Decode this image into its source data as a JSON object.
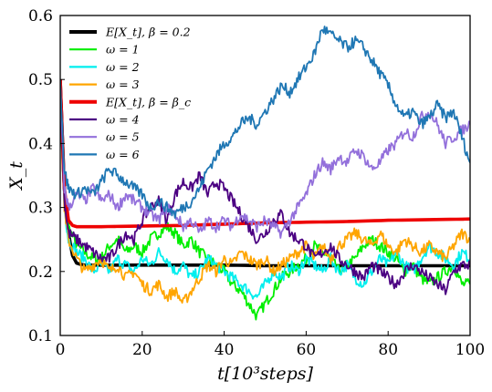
{
  "chart_data": {
    "type": "line",
    "xlabel": "t[10³steps]",
    "ylabel": "X_t",
    "xlim": [
      0,
      100
    ],
    "ylim": [
      0.1,
      0.6
    ],
    "x_ticks": [
      "0",
      "20",
      "40",
      "60",
      "80",
      "100"
    ],
    "y_ticks": [
      "0.1",
      "0.2",
      "0.3",
      "0.4",
      "0.5",
      "0.6"
    ],
    "grid": false,
    "legend_position": "top-left",
    "series": [
      {
        "name": "E[X_t], β = 0.2",
        "color": "#000000",
        "width": 4,
        "x": [
          0,
          1,
          2,
          3,
          4,
          5,
          6,
          8,
          10,
          15,
          20,
          30,
          40,
          50,
          60,
          70,
          80,
          90,
          100
        ],
        "y": [
          0.5,
          0.33,
          0.26,
          0.225,
          0.213,
          0.211,
          0.21,
          0.21,
          0.21,
          0.21,
          0.21,
          0.21,
          0.21,
          0.209,
          0.209,
          0.209,
          0.209,
          0.209,
          0.209
        ]
      },
      {
        "name": "ω = 1",
        "color": "#00ee00",
        "width": 2,
        "x": [
          0,
          1,
          2,
          4,
          6,
          8,
          10,
          12,
          14,
          16,
          18,
          20,
          22,
          24,
          26,
          28,
          30,
          32,
          34,
          36,
          38,
          40,
          42,
          44,
          46,
          48,
          50,
          52,
          54,
          56,
          58,
          60,
          62,
          64,
          66,
          68,
          70,
          72,
          74,
          76,
          78,
          80,
          82,
          84,
          86,
          88,
          90,
          92,
          94,
          96,
          98,
          100
        ],
        "y": [
          0.48,
          0.32,
          0.27,
          0.24,
          0.23,
          0.22,
          0.22,
          0.24,
          0.25,
          0.23,
          0.24,
          0.23,
          0.25,
          0.26,
          0.27,
          0.26,
          0.24,
          0.25,
          0.23,
          0.22,
          0.21,
          0.2,
          0.18,
          0.17,
          0.15,
          0.13,
          0.15,
          0.17,
          0.19,
          0.2,
          0.21,
          0.22,
          0.24,
          0.23,
          0.22,
          0.2,
          0.21,
          0.22,
          0.24,
          0.25,
          0.24,
          0.23,
          0.22,
          0.2,
          0.21,
          0.19,
          0.18,
          0.19,
          0.2,
          0.21,
          0.18,
          0.18
        ]
      },
      {
        "name": "ω = 2",
        "color": "#00eeee",
        "width": 2,
        "x": [
          0,
          1,
          2,
          4,
          6,
          8,
          10,
          12,
          14,
          16,
          18,
          20,
          22,
          24,
          26,
          28,
          30,
          32,
          34,
          36,
          38,
          40,
          42,
          44,
          46,
          48,
          50,
          52,
          54,
          56,
          58,
          60,
          62,
          64,
          66,
          68,
          70,
          72,
          74,
          76,
          78,
          80,
          82,
          84,
          86,
          88,
          90,
          92,
          94,
          96,
          98,
          100
        ],
        "y": [
          0.47,
          0.3,
          0.25,
          0.23,
          0.22,
          0.2,
          0.21,
          0.2,
          0.22,
          0.21,
          0.2,
          0.22,
          0.21,
          0.23,
          0.22,
          0.2,
          0.21,
          0.19,
          0.2,
          0.22,
          0.21,
          0.2,
          0.19,
          0.18,
          0.17,
          0.16,
          0.18,
          0.2,
          0.19,
          0.21,
          0.2,
          0.22,
          0.21,
          0.2,
          0.22,
          0.2,
          0.21,
          0.19,
          0.18,
          0.2,
          0.22,
          0.21,
          0.23,
          0.21,
          0.2,
          0.22,
          0.24,
          0.23,
          0.22,
          0.21,
          0.23,
          0.22
        ]
      },
      {
        "name": "ω = 3",
        "color": "#ffa500",
        "width": 2,
        "x": [
          0,
          1,
          2,
          4,
          6,
          8,
          10,
          12,
          14,
          16,
          18,
          20,
          22,
          24,
          26,
          28,
          30,
          32,
          34,
          36,
          38,
          40,
          42,
          44,
          46,
          48,
          50,
          52,
          54,
          56,
          58,
          60,
          62,
          64,
          66,
          68,
          70,
          72,
          74,
          76,
          78,
          80,
          82,
          84,
          86,
          88,
          90,
          92,
          94,
          96,
          98,
          100
        ],
        "y": [
          0.46,
          0.3,
          0.25,
          0.22,
          0.2,
          0.21,
          0.22,
          0.2,
          0.21,
          0.19,
          0.2,
          0.18,
          0.17,
          0.18,
          0.16,
          0.17,
          0.15,
          0.17,
          0.19,
          0.21,
          0.2,
          0.22,
          0.21,
          0.23,
          0.22,
          0.21,
          0.22,
          0.2,
          0.21,
          0.22,
          0.23,
          0.24,
          0.22,
          0.24,
          0.22,
          0.24,
          0.25,
          0.26,
          0.25,
          0.24,
          0.26,
          0.24,
          0.23,
          0.25,
          0.24,
          0.23,
          0.24,
          0.23,
          0.22,
          0.24,
          0.26,
          0.25
        ]
      },
      {
        "name": "E[X_t], β = β_c",
        "color": "#ee0000",
        "width": 4,
        "x": [
          0,
          1,
          2,
          3,
          4,
          6,
          10,
          20,
          30,
          40,
          50,
          60,
          70,
          80,
          90,
          100
        ],
        "y": [
          0.5,
          0.33,
          0.28,
          0.272,
          0.27,
          0.27,
          0.27,
          0.271,
          0.272,
          0.274,
          0.276,
          0.277,
          0.278,
          0.28,
          0.281,
          0.282
        ]
      },
      {
        "name": "ω = 4",
        "color": "#4b0082",
        "width": 2,
        "x": [
          0,
          1,
          2,
          4,
          6,
          8,
          10,
          12,
          14,
          16,
          18,
          20,
          22,
          24,
          26,
          28,
          30,
          32,
          34,
          36,
          38,
          40,
          42,
          44,
          46,
          48,
          50,
          52,
          54,
          56,
          58,
          60,
          62,
          64,
          66,
          68,
          70,
          72,
          74,
          76,
          78,
          80,
          82,
          84,
          86,
          88,
          90,
          92,
          94,
          96,
          98,
          100
        ],
        "y": [
          0.49,
          0.31,
          0.26,
          0.25,
          0.24,
          0.23,
          0.22,
          0.22,
          0.24,
          0.26,
          0.25,
          0.28,
          0.3,
          0.31,
          0.28,
          0.32,
          0.34,
          0.33,
          0.35,
          0.32,
          0.34,
          0.33,
          0.31,
          0.29,
          0.27,
          0.25,
          0.26,
          0.28,
          0.29,
          0.26,
          0.25,
          0.24,
          0.22,
          0.23,
          0.24,
          0.22,
          0.21,
          0.2,
          0.19,
          0.21,
          0.2,
          0.19,
          0.18,
          0.2,
          0.21,
          0.2,
          0.19,
          0.18,
          0.17,
          0.2,
          0.21,
          0.21
        ]
      },
      {
        "name": "ω = 5",
        "color": "#9370db",
        "width": 2,
        "x": [
          0,
          1,
          2,
          4,
          6,
          8,
          10,
          12,
          14,
          16,
          18,
          20,
          22,
          24,
          26,
          28,
          30,
          32,
          34,
          36,
          38,
          40,
          42,
          44,
          46,
          48,
          50,
          52,
          54,
          56,
          58,
          60,
          62,
          64,
          66,
          68,
          70,
          72,
          74,
          76,
          78,
          80,
          82,
          84,
          86,
          88,
          90,
          92,
          94,
          96,
          98,
          100
        ],
        "y": [
          0.49,
          0.33,
          0.3,
          0.32,
          0.31,
          0.33,
          0.31,
          0.32,
          0.3,
          0.32,
          0.31,
          0.3,
          0.29,
          0.28,
          0.3,
          0.29,
          0.27,
          0.28,
          0.26,
          0.28,
          0.27,
          0.28,
          0.27,
          0.29,
          0.28,
          0.27,
          0.28,
          0.27,
          0.26,
          0.28,
          0.3,
          0.32,
          0.35,
          0.37,
          0.36,
          0.38,
          0.37,
          0.39,
          0.38,
          0.36,
          0.37,
          0.39,
          0.4,
          0.42,
          0.41,
          0.44,
          0.45,
          0.43,
          0.4,
          0.41,
          0.42,
          0.43
        ]
      },
      {
        "name": "ω = 6",
        "color": "#1f77b4",
        "width": 2,
        "x": [
          0,
          1,
          2,
          4,
          6,
          8,
          10,
          12,
          14,
          16,
          18,
          20,
          22,
          24,
          26,
          28,
          30,
          32,
          34,
          36,
          38,
          40,
          42,
          44,
          46,
          48,
          50,
          52,
          54,
          56,
          58,
          60,
          62,
          64,
          66,
          68,
          70,
          72,
          74,
          76,
          78,
          80,
          82,
          84,
          86,
          88,
          90,
          92,
          94,
          96,
          98,
          100
        ],
        "y": [
          0.5,
          0.36,
          0.33,
          0.32,
          0.33,
          0.32,
          0.34,
          0.36,
          0.35,
          0.34,
          0.33,
          0.32,
          0.3,
          0.31,
          0.3,
          0.29,
          0.3,
          0.31,
          0.33,
          0.36,
          0.38,
          0.4,
          0.41,
          0.43,
          0.44,
          0.43,
          0.45,
          0.47,
          0.49,
          0.48,
          0.5,
          0.52,
          0.54,
          0.58,
          0.57,
          0.56,
          0.55,
          0.56,
          0.55,
          0.53,
          0.51,
          0.49,
          0.46,
          0.44,
          0.45,
          0.43,
          0.44,
          0.46,
          0.44,
          0.45,
          0.41,
          0.37
        ]
      }
    ]
  }
}
